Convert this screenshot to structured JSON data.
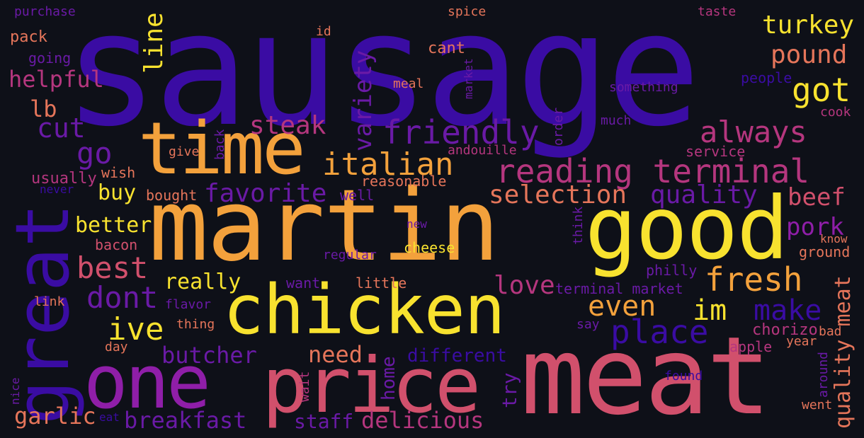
{
  "colors": {
    "background": "#0e1018",
    "indigo": "#3a0ca3",
    "violet": "#6a1aa6",
    "purple": "#8f1ea8",
    "magenta": "#b5367e",
    "pink": "#d1506c",
    "salmon": "#e5755a",
    "orange": "#f3a13c",
    "yellow": "#f8e22f"
  },
  "words": [
    {
      "text": "sausage",
      "color": "indigo"
    },
    {
      "text": "martin",
      "color": "orange"
    },
    {
      "text": "good",
      "color": "yellow"
    },
    {
      "text": "chicken",
      "color": "yellow"
    },
    {
      "text": "meat",
      "color": "pink"
    },
    {
      "text": "great",
      "color": "indigo"
    },
    {
      "text": "one",
      "color": "purple"
    },
    {
      "text": "price",
      "color": "pink"
    },
    {
      "text": "time",
      "color": "orange"
    },
    {
      "text": "reading terminal",
      "color": "magenta"
    },
    {
      "text": "friendly",
      "color": "violet"
    },
    {
      "text": "italian",
      "color": "orange"
    },
    {
      "text": "always",
      "color": "magenta"
    },
    {
      "text": "got",
      "color": "yellow"
    },
    {
      "text": "turkey",
      "color": "yellow"
    },
    {
      "text": "pound",
      "color": "salmon"
    },
    {
      "text": "fresh",
      "color": "orange"
    },
    {
      "text": "place",
      "color": "indigo"
    },
    {
      "text": "quality",
      "color": "violet"
    },
    {
      "text": "selection",
      "color": "salmon"
    },
    {
      "text": "favorite",
      "color": "violet"
    },
    {
      "text": "steak",
      "color": "magenta"
    },
    {
      "text": "cut",
      "color": "violet"
    },
    {
      "text": "go",
      "color": "violet"
    },
    {
      "text": "best",
      "color": "pink"
    },
    {
      "text": "dont",
      "color": "violet"
    },
    {
      "text": "ive",
      "color": "yellow"
    },
    {
      "text": "im",
      "color": "yellow"
    },
    {
      "text": "even",
      "color": "orange"
    },
    {
      "text": "make",
      "color": "indigo"
    },
    {
      "text": "love",
      "color": "magenta"
    },
    {
      "text": "butcher",
      "color": "violet"
    },
    {
      "text": "need",
      "color": "salmon"
    },
    {
      "text": "different",
      "color": "indigo"
    },
    {
      "text": "breakfast",
      "color": "violet"
    },
    {
      "text": "garlic",
      "color": "salmon"
    },
    {
      "text": "staff",
      "color": "violet"
    },
    {
      "text": "delicious",
      "color": "magenta"
    },
    {
      "text": "better",
      "color": "yellow"
    },
    {
      "text": "really",
      "color": "yellow"
    },
    {
      "text": "buy",
      "color": "yellow"
    },
    {
      "text": "helpful",
      "color": "magenta"
    },
    {
      "text": "lb",
      "color": "salmon"
    },
    {
      "text": "beef",
      "color": "pink"
    },
    {
      "text": "pork",
      "color": "purple"
    },
    {
      "text": "terminal market",
      "color": "violet"
    },
    {
      "text": "cheese",
      "color": "yellow"
    },
    {
      "text": "little",
      "color": "salmon"
    },
    {
      "text": "want",
      "color": "violet"
    },
    {
      "text": "reasonable",
      "color": "salmon"
    },
    {
      "text": "well",
      "color": "violet"
    },
    {
      "text": "bought",
      "color": "salmon"
    },
    {
      "text": "wish",
      "color": "salmon"
    },
    {
      "text": "usually",
      "color": "magenta"
    },
    {
      "text": "bacon",
      "color": "pink"
    },
    {
      "text": "service",
      "color": "magenta"
    },
    {
      "text": "andouille",
      "color": "magenta"
    },
    {
      "text": "give",
      "color": "salmon"
    },
    {
      "text": "never",
      "color": "indigo"
    },
    {
      "text": "spice",
      "color": "salmon"
    },
    {
      "text": "purchase",
      "color": "violet"
    },
    {
      "text": "pack",
      "color": "salmon"
    },
    {
      "text": "going",
      "color": "violet"
    },
    {
      "text": "id",
      "color": "salmon"
    },
    {
      "text": "cant",
      "color": "salmon"
    },
    {
      "text": "meal",
      "color": "salmon"
    },
    {
      "text": "something",
      "color": "violet"
    },
    {
      "text": "much",
      "color": "violet"
    },
    {
      "text": "people",
      "color": "indigo"
    },
    {
      "text": "taste",
      "color": "magenta"
    },
    {
      "text": "cook",
      "color": "magenta"
    },
    {
      "text": "ground",
      "color": "salmon"
    },
    {
      "text": "know",
      "color": "salmon"
    },
    {
      "text": "philly",
      "color": "violet"
    },
    {
      "text": "regular",
      "color": "violet"
    },
    {
      "text": "new",
      "color": "violet"
    },
    {
      "text": "link",
      "color": "salmon"
    },
    {
      "text": "flavor",
      "color": "violet"
    },
    {
      "text": "thing",
      "color": "salmon"
    },
    {
      "text": "day",
      "color": "salmon"
    },
    {
      "text": "say",
      "color": "violet"
    },
    {
      "text": "chorizo",
      "color": "magenta"
    },
    {
      "text": "bad",
      "color": "salmon"
    },
    {
      "text": "apple",
      "color": "magenta"
    },
    {
      "text": "year",
      "color": "salmon"
    },
    {
      "text": "eat",
      "color": "indigo"
    },
    {
      "text": "went",
      "color": "salmon"
    },
    {
      "text": "found",
      "color": "indigo"
    },
    {
      "text": "wait",
      "color": "magenta"
    },
    {
      "text": "nice",
      "color": "violet"
    },
    {
      "text": "line",
      "color": "yellow"
    },
    {
      "text": "variety",
      "color": "violet"
    },
    {
      "text": "home",
      "color": "violet"
    },
    {
      "text": "try",
      "color": "violet"
    },
    {
      "text": "back",
      "color": "violet"
    },
    {
      "text": "market",
      "color": "violet"
    },
    {
      "text": "order",
      "color": "violet"
    },
    {
      "text": "think",
      "color": "violet"
    },
    {
      "text": "quality meat",
      "color": "salmon"
    },
    {
      "text": "around",
      "color": "violet"
    }
  ]
}
